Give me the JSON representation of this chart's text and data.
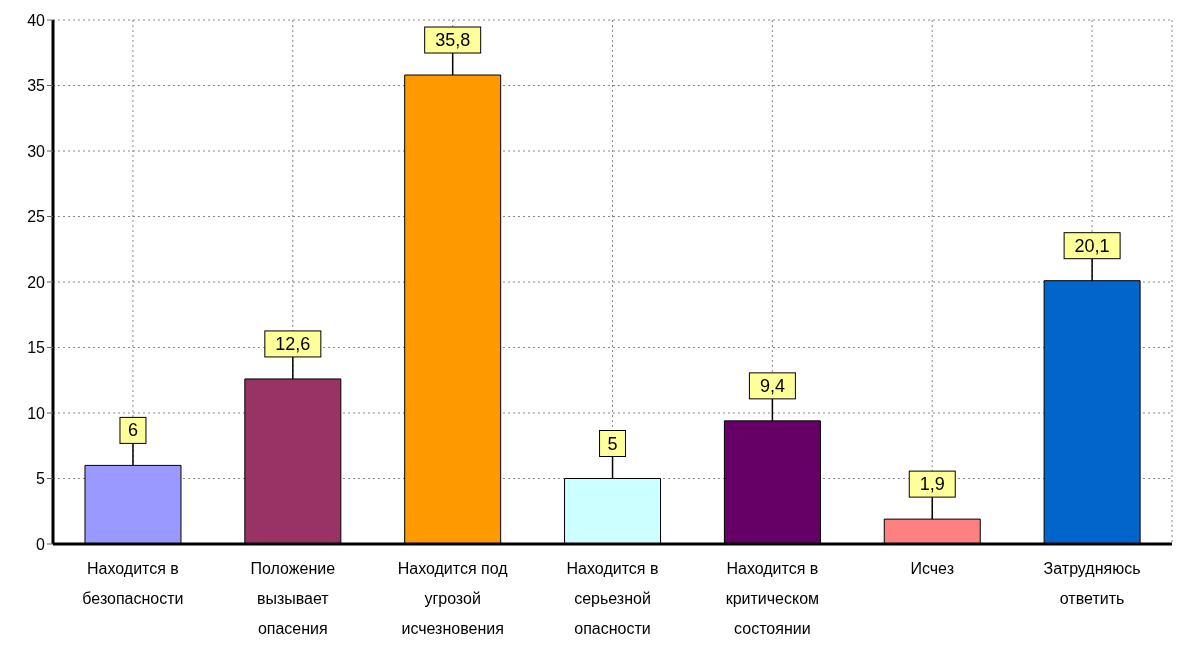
{
  "chart_data": {
    "type": "bar",
    "categories": [
      "Находится в безопасности",
      "Положение вызывает опасения",
      "Находится под угрозой исчезновения",
      "Находится в серьезной опасности",
      "Находится в критическом состоянии",
      "Исчез",
      "Затрудняюсь ответить"
    ],
    "values": [
      6,
      12.6,
      35.8,
      5,
      9.4,
      1.9,
      20.1
    ],
    "colors": [
      "#9999ff",
      "#993366",
      "#ff9900",
      "#ccffff",
      "#660066",
      "#ff8080",
      "#0066cc"
    ],
    "value_labels": [
      "6",
      "12,6",
      "35,8",
      "5",
      "9,4",
      "1,9",
      "20,1"
    ],
    "ylim": [
      0,
      40
    ],
    "yticks": [
      0,
      5,
      10,
      15,
      20,
      25,
      30,
      35,
      40
    ],
    "grid": true
  }
}
